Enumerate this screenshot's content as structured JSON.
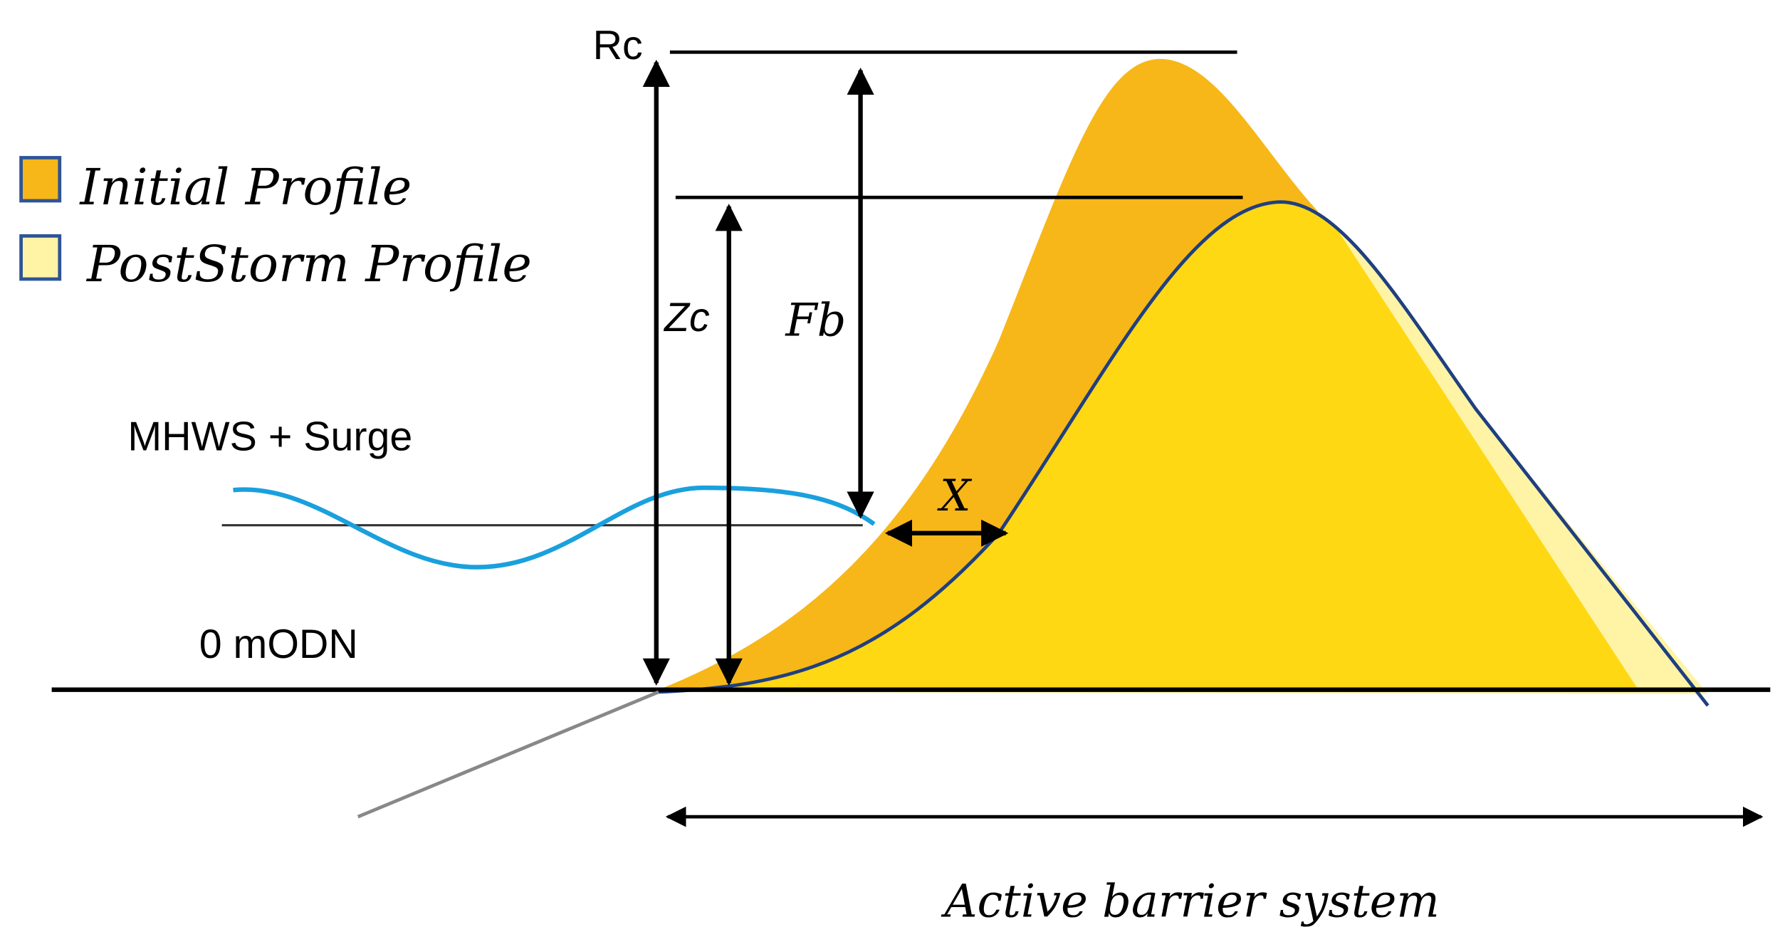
{
  "legend": [
    {
      "label": "Initial Profile"
    },
    {
      "label": "PostStorm Profile"
    }
  ],
  "labels": {
    "rc": "Rc",
    "zc": "Zc",
    "fb": "Fb",
    "x": "X",
    "water_level": "MHWS + Surge",
    "datum": "0 mODN",
    "extent": "Active barrier system"
  }
}
